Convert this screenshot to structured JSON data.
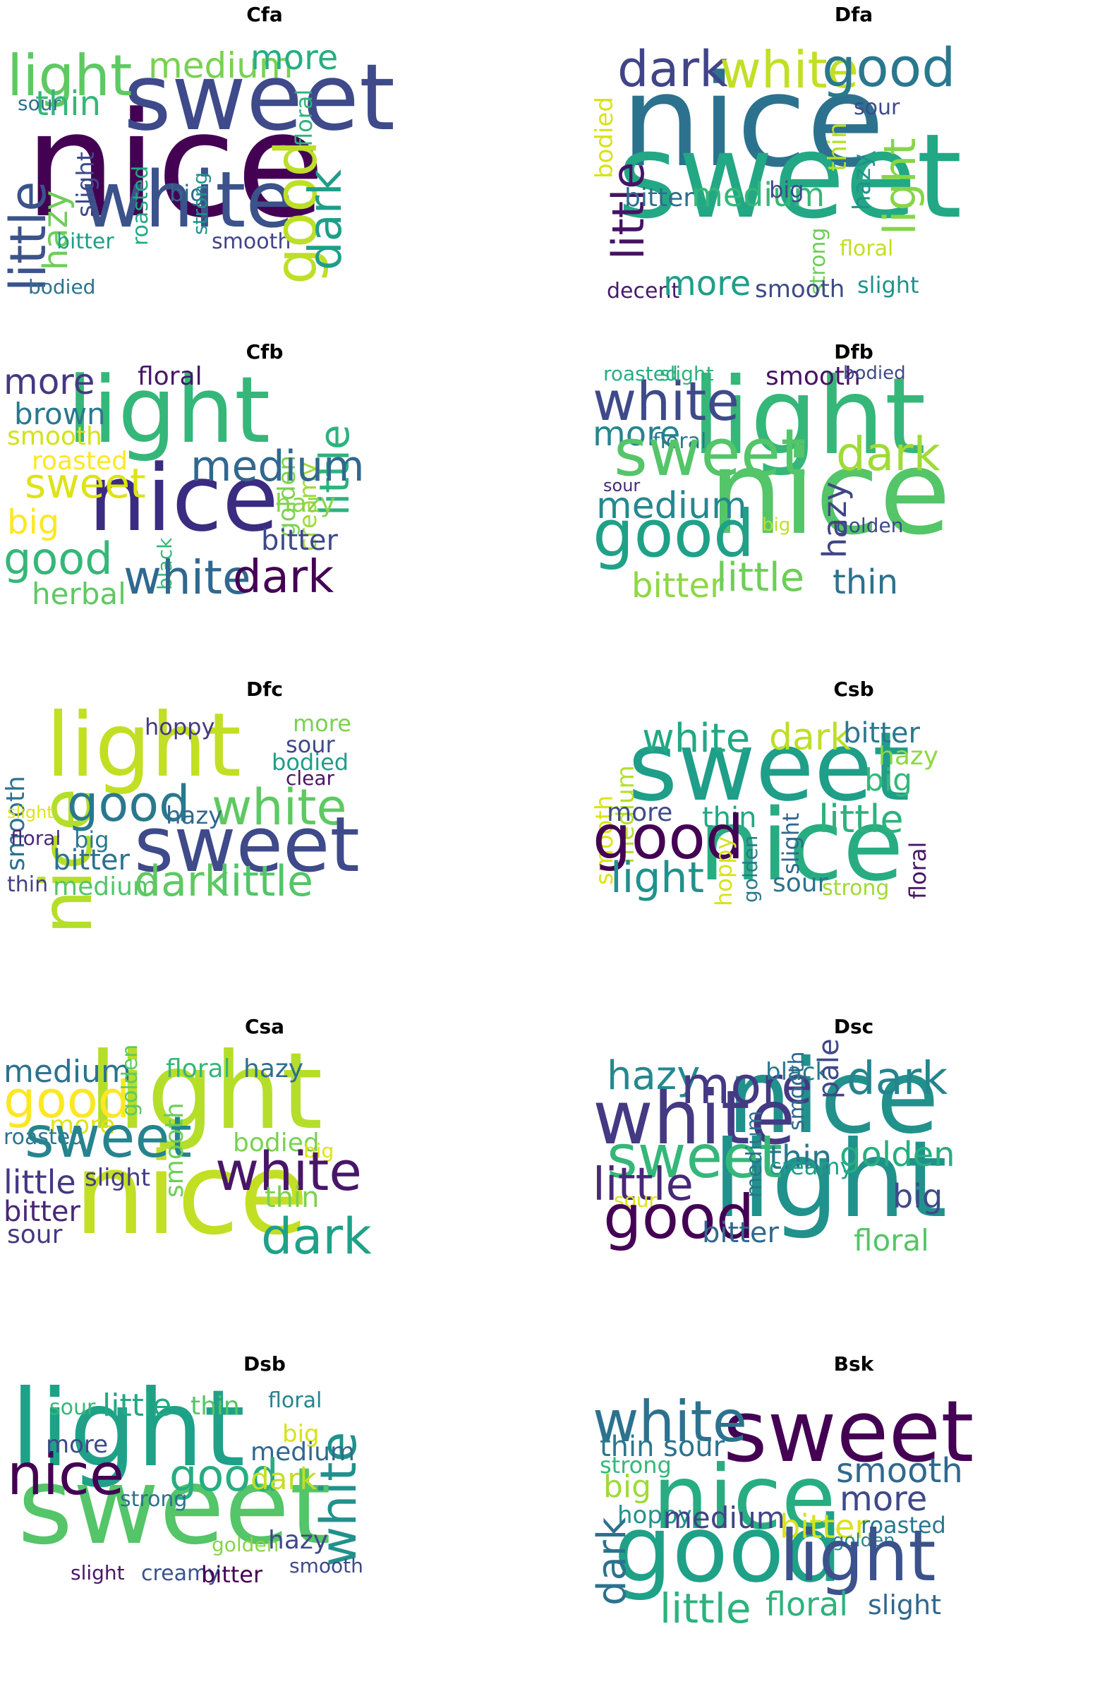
{
  "panels": [
    {
      "title": "Cfa",
      "words": [
        {
          "text": "nice",
          "color": "#440154"
        },
        {
          "text": "sweet",
          "color": "#3e4a89"
        },
        {
          "text": "white",
          "color": "#3b528b"
        },
        {
          "text": "light",
          "color": "#5ec962"
        },
        {
          "text": "medium",
          "color": "#7ad151"
        },
        {
          "text": "more",
          "color": "#27ad81"
        },
        {
          "text": "thin",
          "color": "#35b779"
        },
        {
          "text": "sour",
          "color": "#2e6e8e"
        },
        {
          "text": "little",
          "color": "#3b528b"
        },
        {
          "text": "hazy",
          "color": "#6ece58"
        },
        {
          "text": "slight",
          "color": "#3e4989"
        },
        {
          "text": "bitter",
          "color": "#1f9e89"
        },
        {
          "text": "roasted",
          "color": "#22a884"
        },
        {
          "text": "big",
          "color": "#31688e"
        },
        {
          "text": "strong",
          "color": "#21918c"
        },
        {
          "text": "floral",
          "color": "#2db27d"
        },
        {
          "text": "smooth",
          "color": "#414487"
        },
        {
          "text": "good",
          "color": "#bddf26"
        },
        {
          "text": "dark",
          "color": "#1f9e89"
        },
        {
          "text": "bodied",
          "color": "#2c728e"
        }
      ]
    },
    {
      "title": "Dfa",
      "words": [
        {
          "text": "nice",
          "color": "#2c728e"
        },
        {
          "text": "sweet",
          "color": "#22a884"
        },
        {
          "text": "dark",
          "color": "#414487"
        },
        {
          "text": "white",
          "color": "#c2df23"
        },
        {
          "text": "good",
          "color": "#2a788e"
        },
        {
          "text": "sour",
          "color": "#3e4989"
        },
        {
          "text": "bodied",
          "color": "#d8e219"
        },
        {
          "text": "little",
          "color": "#471365"
        },
        {
          "text": "bitter",
          "color": "#2e6e8e"
        },
        {
          "text": "medium",
          "color": "#35b779"
        },
        {
          "text": "big",
          "color": "#3e4989"
        },
        {
          "text": "thin",
          "color": "#b5de2b"
        },
        {
          "text": "hazy",
          "color": "#21918c"
        },
        {
          "text": "light",
          "color": "#86d549"
        },
        {
          "text": "strong",
          "color": "#6ece58"
        },
        {
          "text": "floral",
          "color": "#c2df23"
        },
        {
          "text": "decent",
          "color": "#481a6c"
        },
        {
          "text": "more",
          "color": "#1f9e89"
        },
        {
          "text": "smooth",
          "color": "#3e4a89"
        },
        {
          "text": "slight",
          "color": "#21918c"
        }
      ]
    },
    {
      "title": "Cfb",
      "words": [
        {
          "text": "light",
          "color": "#35b779"
        },
        {
          "text": "nice",
          "color": "#3b2c81"
        },
        {
          "text": "more",
          "color": "#443983"
        },
        {
          "text": "floral",
          "color": "#481668"
        },
        {
          "text": "brown",
          "color": "#2a788e"
        },
        {
          "text": "smooth",
          "color": "#d2e21b"
        },
        {
          "text": "roasted",
          "color": "#fde725"
        },
        {
          "text": "sweet",
          "color": "#dde318"
        },
        {
          "text": "golden",
          "color": "#7ad151"
        },
        {
          "text": "creamy",
          "color": "#a0da39"
        },
        {
          "text": "little",
          "color": "#2db27d"
        },
        {
          "text": "medium",
          "color": "#31688e"
        },
        {
          "text": "black",
          "color": "#35b779"
        },
        {
          "text": "hazy",
          "color": "#86d549"
        },
        {
          "text": "big",
          "color": "#fde725"
        },
        {
          "text": "bitter",
          "color": "#3e4989"
        },
        {
          "text": "good",
          "color": "#35b779"
        },
        {
          "text": "white",
          "color": "#31688e"
        },
        {
          "text": "dark",
          "color": "#440154"
        },
        {
          "text": "herbal",
          "color": "#5ec962"
        }
      ]
    },
    {
      "title": "Dfb",
      "words": [
        {
          "text": "light",
          "color": "#35b779"
        },
        {
          "text": "nice",
          "color": "#54c568"
        },
        {
          "text": "white",
          "color": "#3e4a89"
        },
        {
          "text": "roasted",
          "color": "#27ad81"
        },
        {
          "text": "slight",
          "color": "#2db27d"
        },
        {
          "text": "smooth",
          "color": "#471365"
        },
        {
          "text": "bodied",
          "color": "#3e4a89"
        },
        {
          "text": "more",
          "color": "#25848e"
        },
        {
          "text": "floral",
          "color": "#2a788e"
        },
        {
          "text": "sweet",
          "color": "#54c568"
        },
        {
          "text": "dark",
          "color": "#a0da39"
        },
        {
          "text": "sour",
          "color": "#482878"
        },
        {
          "text": "medium",
          "color": "#23898e"
        },
        {
          "text": "hazy",
          "color": "#414487"
        },
        {
          "text": "big",
          "color": "#bddf26"
        },
        {
          "text": "golden",
          "color": "#3e4989"
        },
        {
          "text": "good",
          "color": "#1fa188"
        },
        {
          "text": "bitter",
          "color": "#8fd744"
        },
        {
          "text": "little",
          "color": "#6ece58"
        },
        {
          "text": "thin",
          "color": "#2c728e"
        }
      ]
    },
    {
      "title": "Dfc",
      "words": [
        {
          "text": "light",
          "color": "#c2df23"
        },
        {
          "text": "nice",
          "color": "#b5de2b"
        },
        {
          "text": "hoppy",
          "color": "#443983"
        },
        {
          "text": "more",
          "color": "#7ad151"
        },
        {
          "text": "sour",
          "color": "#3e4989"
        },
        {
          "text": "bodied",
          "color": "#1f9e89"
        },
        {
          "text": "clear",
          "color": "#481668"
        },
        {
          "text": "smooth",
          "color": "#2c728e"
        },
        {
          "text": "good",
          "color": "#2a788e"
        },
        {
          "text": "white",
          "color": "#5ec962"
        },
        {
          "text": "slight",
          "color": "#dde318"
        },
        {
          "text": "hazy",
          "color": "#31688e"
        },
        {
          "text": "floral",
          "color": "#482878"
        },
        {
          "text": "big",
          "color": "#2a788e"
        },
        {
          "text": "sweet",
          "color": "#3e4a89"
        },
        {
          "text": "bitter",
          "color": "#2c728e"
        },
        {
          "text": "thin",
          "color": "#433e85"
        },
        {
          "text": "medium",
          "color": "#54c568"
        },
        {
          "text": "dark",
          "color": "#5ec962"
        },
        {
          "text": "little",
          "color": "#54c568"
        }
      ]
    },
    {
      "title": "Csb",
      "words": [
        {
          "text": "sweet",
          "color": "#1f9e89"
        },
        {
          "text": "nice",
          "color": "#27ad81"
        },
        {
          "text": "white",
          "color": "#22a884"
        },
        {
          "text": "dark",
          "color": "#bddf26"
        },
        {
          "text": "bitter",
          "color": "#2a788e"
        },
        {
          "text": "hazy",
          "color": "#8fd744"
        },
        {
          "text": "smooth",
          "color": "#dde318"
        },
        {
          "text": "medium",
          "color": "#b5de2b"
        },
        {
          "text": "big",
          "color": "#35b779"
        },
        {
          "text": "more",
          "color": "#3e4a89"
        },
        {
          "text": "thin",
          "color": "#22a884"
        },
        {
          "text": "little",
          "color": "#2db27d"
        },
        {
          "text": "good",
          "color": "#440154"
        },
        {
          "text": "slight",
          "color": "#31688e"
        },
        {
          "text": "floral",
          "color": "#481668"
        },
        {
          "text": "hoppy",
          "color": "#d8e219"
        },
        {
          "text": "golden",
          "color": "#2a788e"
        },
        {
          "text": "light",
          "color": "#21918c"
        },
        {
          "text": "sour",
          "color": "#2c728e"
        },
        {
          "text": "strong",
          "color": "#a0da39"
        }
      ]
    },
    {
      "title": "Csa",
      "words": [
        {
          "text": "light",
          "color": "#b5de2b"
        },
        {
          "text": "nice",
          "color": "#c2df23"
        },
        {
          "text": "medium",
          "color": "#2c728e"
        },
        {
          "text": "good",
          "color": "#fde725"
        },
        {
          "text": "golden",
          "color": "#5ec962"
        },
        {
          "text": "floral",
          "color": "#35b779"
        },
        {
          "text": "hazy",
          "color": "#2e6e8e"
        },
        {
          "text": "more",
          "color": "#dde318"
        },
        {
          "text": "roasted",
          "color": "#2c728e"
        },
        {
          "text": "sweet",
          "color": "#25848e"
        },
        {
          "text": "bodied",
          "color": "#7ad151"
        },
        {
          "text": "big",
          "color": "#dde318"
        },
        {
          "text": "smooth",
          "color": "#6ece58"
        },
        {
          "text": "white",
          "color": "#481668"
        },
        {
          "text": "little",
          "color": "#443983"
        },
        {
          "text": "slight",
          "color": "#433e85"
        },
        {
          "text": "bitter",
          "color": "#482878"
        },
        {
          "text": "thin",
          "color": "#7ad151"
        },
        {
          "text": "sour",
          "color": "#443983"
        },
        {
          "text": "dark",
          "color": "#1fa188"
        }
      ]
    },
    {
      "title": "Dsc",
      "words": [
        {
          "text": "nice",
          "color": "#21918c"
        },
        {
          "text": "white",
          "color": "#443983"
        },
        {
          "text": "light",
          "color": "#21918c"
        },
        {
          "text": "hazy",
          "color": "#23898e"
        },
        {
          "text": "more",
          "color": "#443983"
        },
        {
          "text": "black",
          "color": "#2a788e"
        },
        {
          "text": "dark",
          "color": "#25848e"
        },
        {
          "text": "smooth",
          "color": "#31688e"
        },
        {
          "text": "pale",
          "color": "#3e4989"
        },
        {
          "text": "sweet",
          "color": "#35b779"
        },
        {
          "text": "thin",
          "color": "#2a788e"
        },
        {
          "text": "creamy",
          "color": "#1f9e89"
        },
        {
          "text": "golden",
          "color": "#27ad81"
        },
        {
          "text": "little",
          "color": "#482878"
        },
        {
          "text": "medium",
          "color": "#2c728e"
        },
        {
          "text": "big",
          "color": "#3e4a89"
        },
        {
          "text": "sour",
          "color": "#dde318"
        },
        {
          "text": "good",
          "color": "#440154"
        },
        {
          "text": "bitter",
          "color": "#31688e"
        },
        {
          "text": "floral",
          "color": "#54c568"
        }
      ]
    },
    {
      "title": "Dsb",
      "words": [
        {
          "text": "light",
          "color": "#1fa188"
        },
        {
          "text": "sweet",
          "color": "#54c568"
        },
        {
          "text": "nice",
          "color": "#440154"
        },
        {
          "text": "sour",
          "color": "#35b779"
        },
        {
          "text": "little",
          "color": "#22a884"
        },
        {
          "text": "thin",
          "color": "#54c568"
        },
        {
          "text": "floral",
          "color": "#25848e"
        },
        {
          "text": "white",
          "color": "#21918c"
        },
        {
          "text": "big",
          "color": "#d8e219"
        },
        {
          "text": "more",
          "color": "#3e4989"
        },
        {
          "text": "medium",
          "color": "#31688e"
        },
        {
          "text": "good",
          "color": "#27ad81"
        },
        {
          "text": "dark",
          "color": "#c2df23"
        },
        {
          "text": "strong",
          "color": "#2c728e"
        },
        {
          "text": "golden",
          "color": "#86d549"
        },
        {
          "text": "hazy",
          "color": "#3e4989"
        },
        {
          "text": "slight",
          "color": "#481668"
        },
        {
          "text": "creamy",
          "color": "#3b528b"
        },
        {
          "text": "bitter",
          "color": "#440154"
        },
        {
          "text": "smooth",
          "color": "#3e4989"
        }
      ]
    },
    {
      "title": "Bsk",
      "words": [
        {
          "text": "sweet",
          "color": "#440154"
        },
        {
          "text": "nice",
          "color": "#27ad81"
        },
        {
          "text": "good",
          "color": "#1fa188"
        },
        {
          "text": "white",
          "color": "#2c728e"
        },
        {
          "text": "thin",
          "color": "#2a788e"
        },
        {
          "text": "sour",
          "color": "#2c728e"
        },
        {
          "text": "strong",
          "color": "#35b779"
        },
        {
          "text": "big",
          "color": "#a0da39"
        },
        {
          "text": "smooth",
          "color": "#31688e"
        },
        {
          "text": "more",
          "color": "#3e4989"
        },
        {
          "text": "hoppy",
          "color": "#21918c"
        },
        {
          "text": "medium",
          "color": "#414487"
        },
        {
          "text": "bitter",
          "color": "#d8e219"
        },
        {
          "text": "roasted",
          "color": "#2a788e"
        },
        {
          "text": "golden",
          "color": "#25848e"
        },
        {
          "text": "dark",
          "color": "#2c728e"
        },
        {
          "text": "light",
          "color": "#3b528b"
        },
        {
          "text": "little",
          "color": "#2db27d"
        },
        {
          "text": "floral",
          "color": "#2db27d"
        },
        {
          "text": "slight",
          "color": "#31688e"
        }
      ]
    }
  ]
}
